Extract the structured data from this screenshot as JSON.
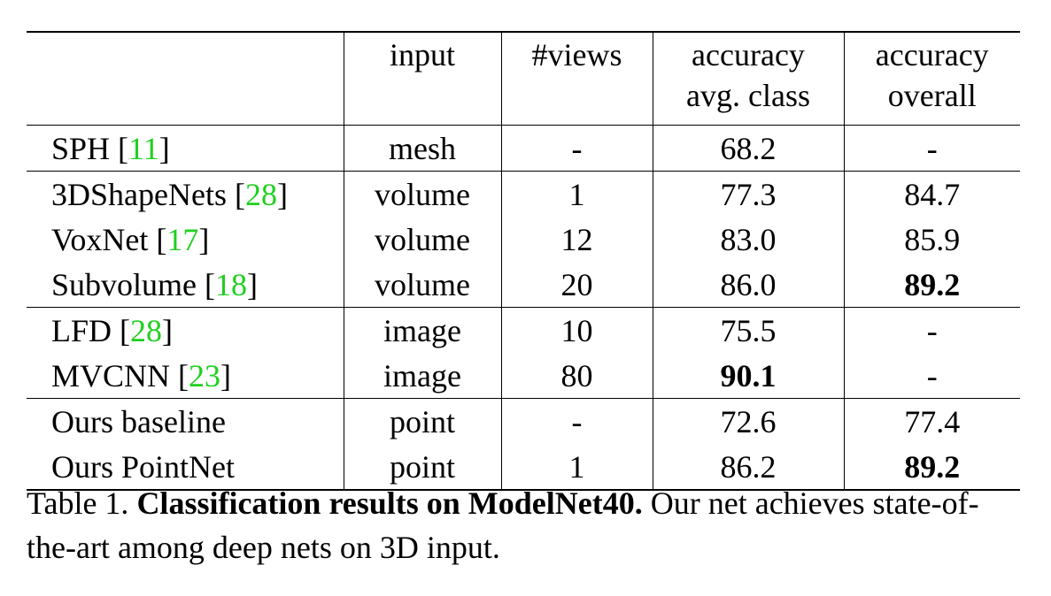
{
  "table": {
    "header": [
      [],
      [
        "input"
      ],
      [
        "#views"
      ],
      [
        "accuracy",
        "avg. class"
      ],
      [
        "accuracy",
        "overall"
      ]
    ],
    "cite_brackets": [
      "[",
      "]"
    ],
    "groups": [
      [
        {
          "method": "SPH",
          "cite": "11",
          "cells": [
            "mesh",
            "-",
            "68.2",
            "-"
          ],
          "bold": []
        }
      ],
      [
        {
          "method": "3DShapeNets",
          "cite": "28",
          "cells": [
            "volume",
            "1",
            "77.3",
            "84.7"
          ],
          "bold": []
        },
        {
          "method": "VoxNet",
          "cite": "17",
          "cells": [
            "volume",
            "12",
            "83.0",
            "85.9"
          ],
          "bold": []
        },
        {
          "method": "Subvolume",
          "cite": "18",
          "cells": [
            "volume",
            "20",
            "86.0",
            "89.2"
          ],
          "bold": [
            3
          ]
        }
      ],
      [
        {
          "method": "LFD",
          "cite": "28",
          "cells": [
            "image",
            "10",
            "75.5",
            "-"
          ],
          "bold": []
        },
        {
          "method": "MVCNN",
          "cite": "23",
          "cells": [
            "image",
            "80",
            "90.1",
            "-"
          ],
          "bold": [
            2
          ]
        }
      ],
      [
        {
          "method": "Ours baseline",
          "cite": null,
          "cells": [
            "point",
            "-",
            "72.6",
            "77.4"
          ],
          "bold": []
        },
        {
          "method": "Ours PointNet",
          "cite": null,
          "cells": [
            "point",
            "1",
            "86.2",
            "89.2"
          ],
          "bold": [
            3
          ]
        }
      ]
    ],
    "caption": {
      "label": "Table 1.",
      "title": "Classification results on ModelNet40.",
      "text": "Our net achieves state-of-the-art among deep nets on 3D input."
    }
  }
}
